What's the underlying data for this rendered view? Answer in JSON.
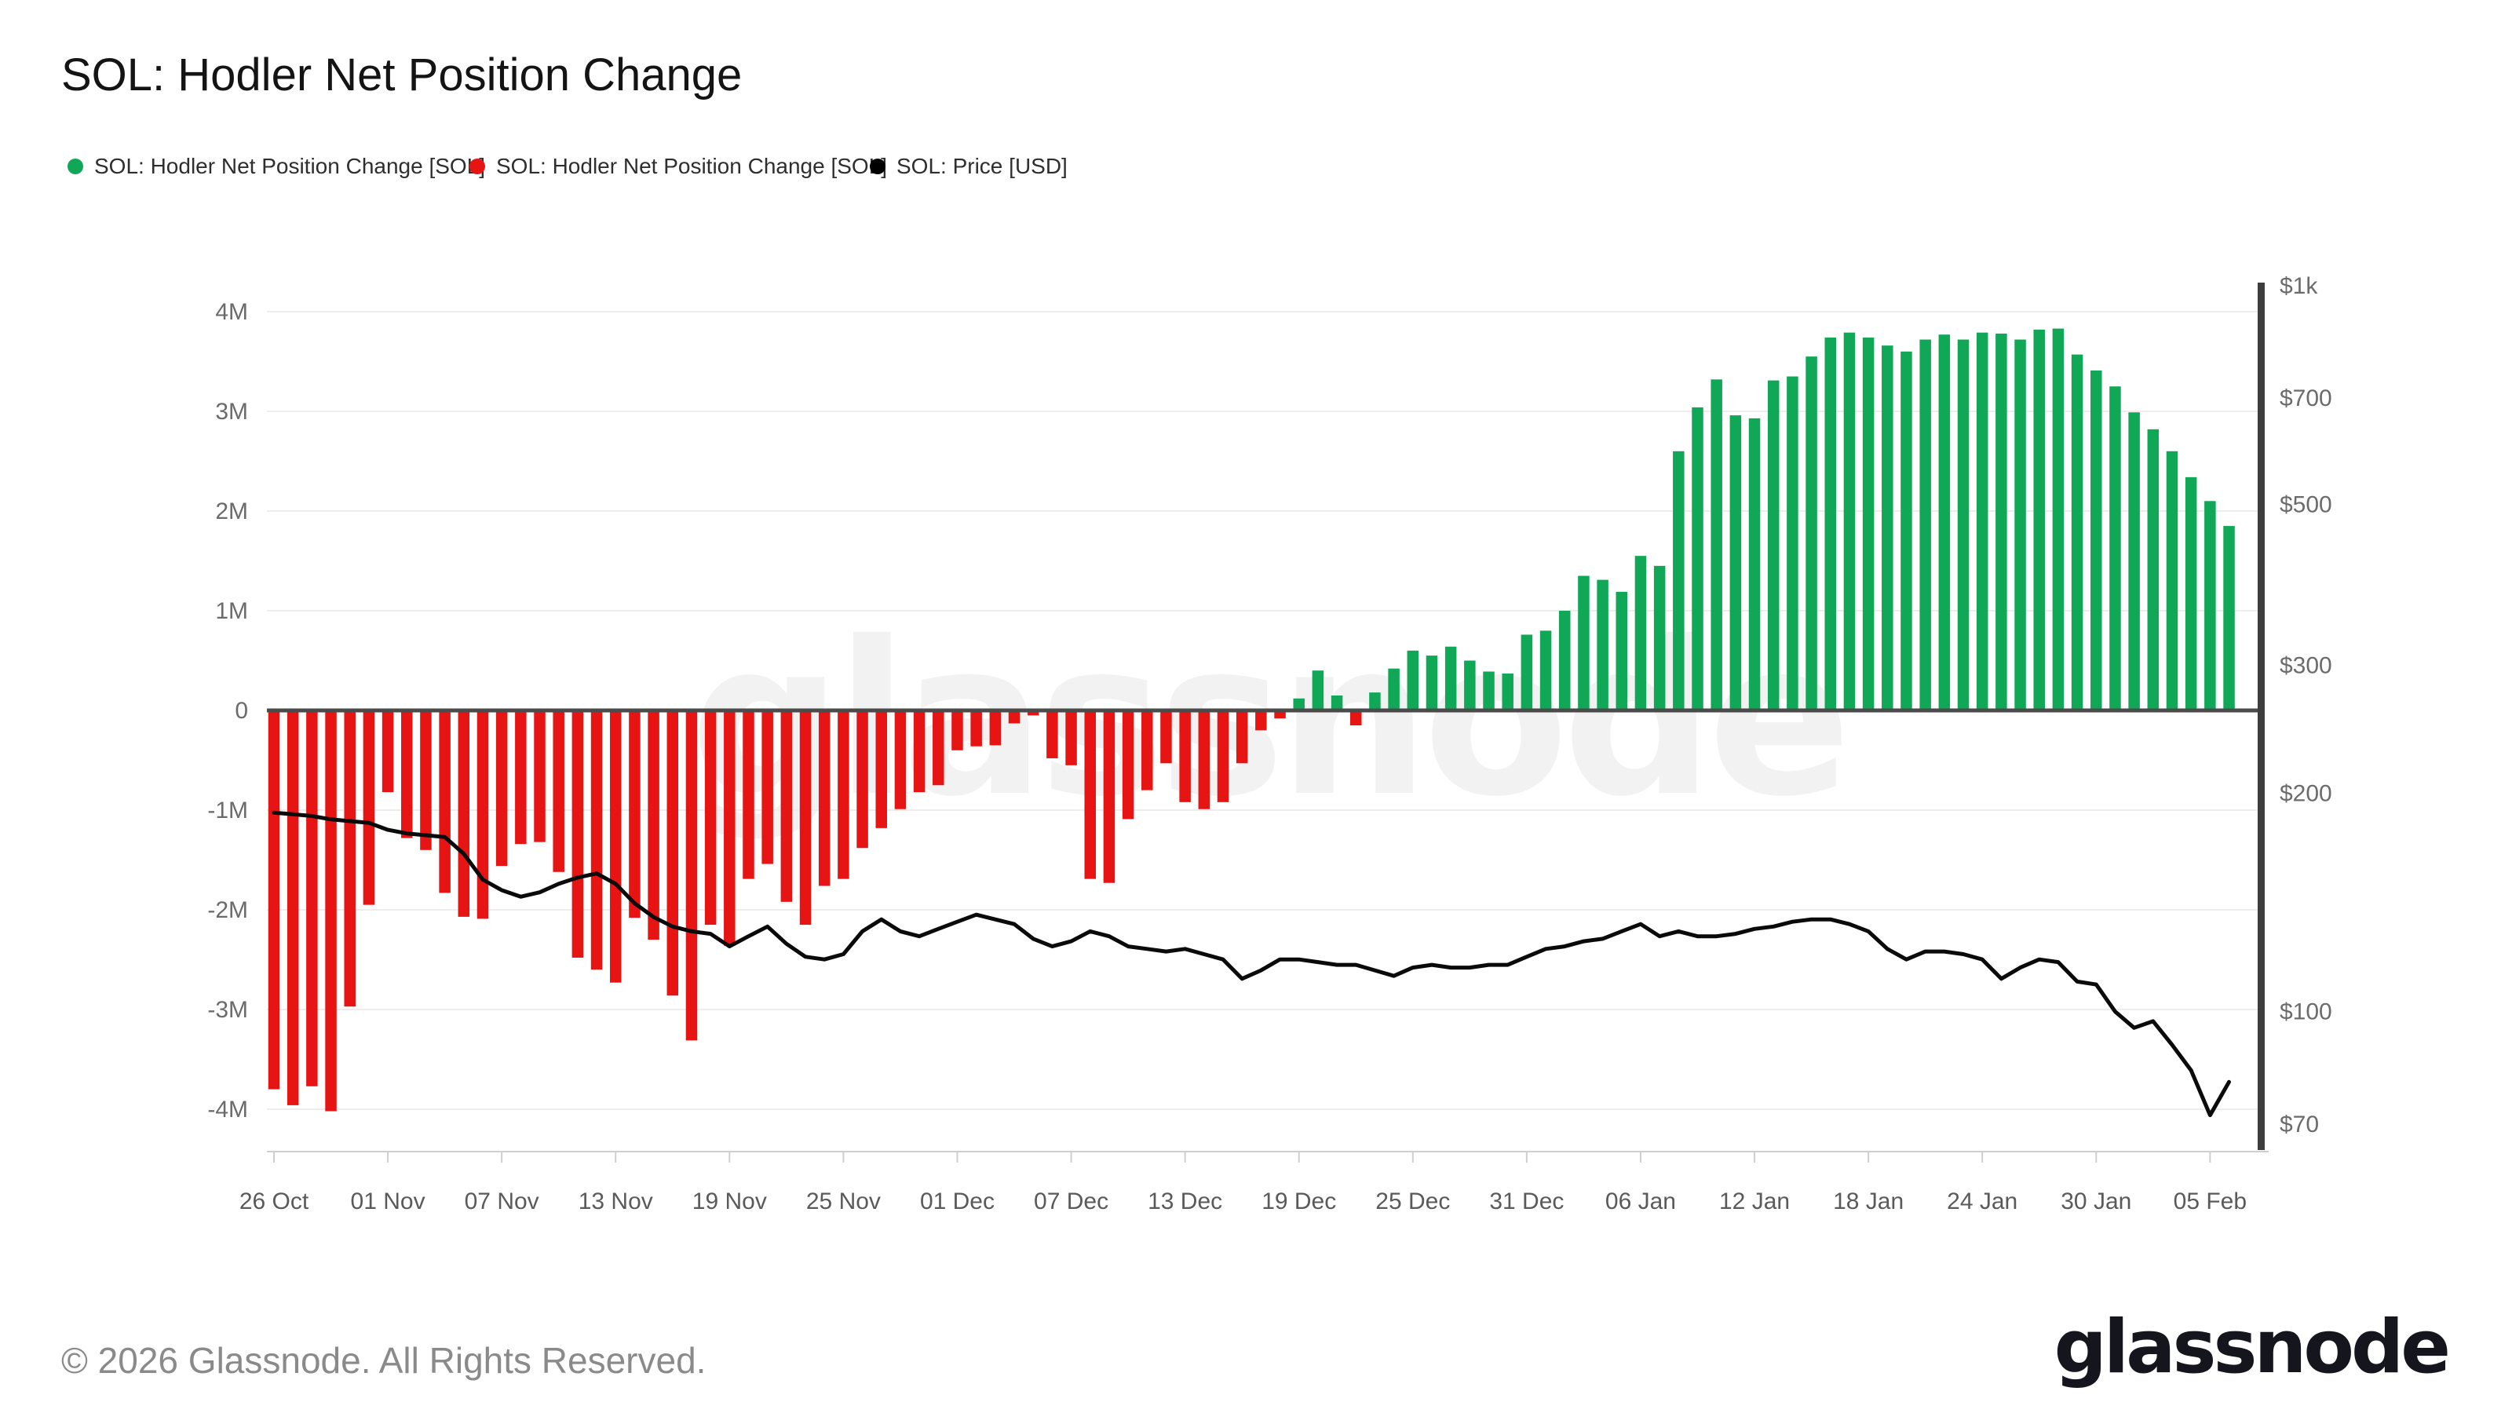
{
  "header": {
    "title": "SOL: Hodler Net Position Change"
  },
  "legend": {
    "items": [
      {
        "label": "SOL: Hodler Net Position Change [SOL]",
        "color": "#10a856",
        "shape": "circle"
      },
      {
        "label": "SOL: Hodler Net Position Change [SOL]",
        "color": "#e71414",
        "shape": "circle"
      },
      {
        "label": "SOL: Price [USD]",
        "color": "#000000",
        "shape": "circle"
      }
    ]
  },
  "watermark": "glassnode",
  "footer": {
    "copyright": "© 2026 Glassnode. All Rights Reserved.",
    "brand": "glassnode"
  },
  "chart_data": {
    "type": "bar+line",
    "title": "SOL: Hodler Net Position Change",
    "frequency": "daily",
    "x_axis": {
      "tick_labels": [
        "26 Oct",
        "01 Nov",
        "07 Nov",
        "13 Nov",
        "19 Nov",
        "25 Nov",
        "01 Dec",
        "07 Dec",
        "13 Dec",
        "19 Dec",
        "25 Dec",
        "31 Dec",
        "06 Jan",
        "12 Jan",
        "18 Jan",
        "24 Jan",
        "30 Jan",
        "05 Feb"
      ],
      "tick_day_indices": [
        0,
        6,
        12,
        18,
        24,
        30,
        36,
        42,
        48,
        54,
        60,
        66,
        72,
        78,
        84,
        90,
        96,
        102
      ]
    },
    "left_axis": {
      "unit": "SOL (millions)",
      "tick_labels": [
        "4M",
        "3M",
        "2M",
        "1M",
        "0",
        "-1M",
        "-2M",
        "-3M",
        "-4M"
      ],
      "tick_values": [
        4,
        3,
        2,
        1,
        0,
        -1,
        -2,
        -3,
        -4
      ],
      "range": [
        -4.4,
        4.35
      ]
    },
    "right_axis": {
      "unit": "USD",
      "scale": "log",
      "ticks": [
        {
          "label": "$1k",
          "value": 1000
        },
        {
          "label": "$700",
          "value": 700
        },
        {
          "label": "$500",
          "value": 500
        },
        {
          "label": "$300",
          "value": 300
        },
        {
          "label": "$200",
          "value": 200
        },
        {
          "label": "$100",
          "value": 100
        },
        {
          "label": "$70",
          "value": 70
        }
      ]
    },
    "series": [
      {
        "name": "SOL: Hodler Net Position Change [SOL]",
        "type": "bar",
        "units": "millions of SOL",
        "positive_color": "#10a856",
        "negative_color": "#e71414",
        "values": [
          -3.8,
          -3.96,
          -3.77,
          -4.02,
          -2.97,
          -1.95,
          -0.82,
          -1.28,
          -1.4,
          -1.83,
          -2.07,
          -2.09,
          -1.56,
          -1.34,
          -1.32,
          -1.62,
          -2.48,
          -2.6,
          -2.73,
          -2.08,
          -2.3,
          -2.86,
          -3.31,
          -2.15,
          -2.36,
          -1.69,
          -1.54,
          -1.92,
          -2.15,
          -1.76,
          -1.69,
          -1.38,
          -1.18,
          -0.99,
          -0.82,
          -0.75,
          -0.4,
          -0.36,
          -0.35,
          -0.13,
          -0.05,
          -0.48,
          -0.55,
          -1.69,
          -1.73,
          -1.09,
          -0.8,
          -0.53,
          -0.92,
          -0.99,
          -0.92,
          -0.53,
          -0.2,
          -0.08,
          0.12,
          0.4,
          0.15,
          -0.15,
          0.18,
          0.42,
          0.6,
          0.55,
          0.64,
          0.5,
          0.39,
          0.37,
          0.76,
          0.8,
          1.0,
          1.35,
          1.31,
          1.19,
          1.55,
          1.45,
          2.6,
          3.04,
          3.32,
          2.96,
          2.93,
          3.31,
          3.35,
          3.55,
          3.74,
          3.79,
          3.74,
          3.66,
          3.6,
          3.72,
          3.77,
          3.72,
          3.79,
          3.78,
          3.72,
          3.82,
          3.83,
          3.57,
          3.41,
          3.25,
          2.99,
          2.82,
          2.6,
          2.34,
          2.1,
          1.85
        ]
      },
      {
        "name": "SOL: Price [USD]",
        "type": "line",
        "units": "USD",
        "color": "#0a0a0a",
        "values": [
          188,
          187,
          186,
          184,
          183,
          182,
          178,
          176,
          175,
          174,
          165,
          152,
          147,
          144,
          146,
          150,
          153,
          155,
          150,
          141,
          135,
          131,
          129,
          128,
          123,
          127,
          131,
          124,
          119,
          118,
          120,
          129,
          134,
          129,
          127,
          130,
          133,
          136,
          134,
          132,
          126,
          123,
          125,
          129,
          127,
          123,
          122,
          121,
          122,
          120,
          118,
          111,
          114,
          118,
          118,
          117,
          116,
          116,
          114,
          112,
          115,
          116,
          115,
          115,
          116,
          116,
          119,
          122,
          123,
          125,
          126,
          129,
          132,
          127,
          129,
          127,
          127,
          128,
          130,
          131,
          133,
          134,
          134,
          132,
          129,
          122,
          118,
          121,
          121,
          120,
          118,
          111,
          115,
          118,
          117,
          110,
          109,
          100,
          95,
          97,
          90,
          83,
          72,
          80
        ]
      }
    ],
    "grid": "horizontal-light",
    "zero_line_color": "#4b4b4b",
    "legend_position": "top-left"
  }
}
